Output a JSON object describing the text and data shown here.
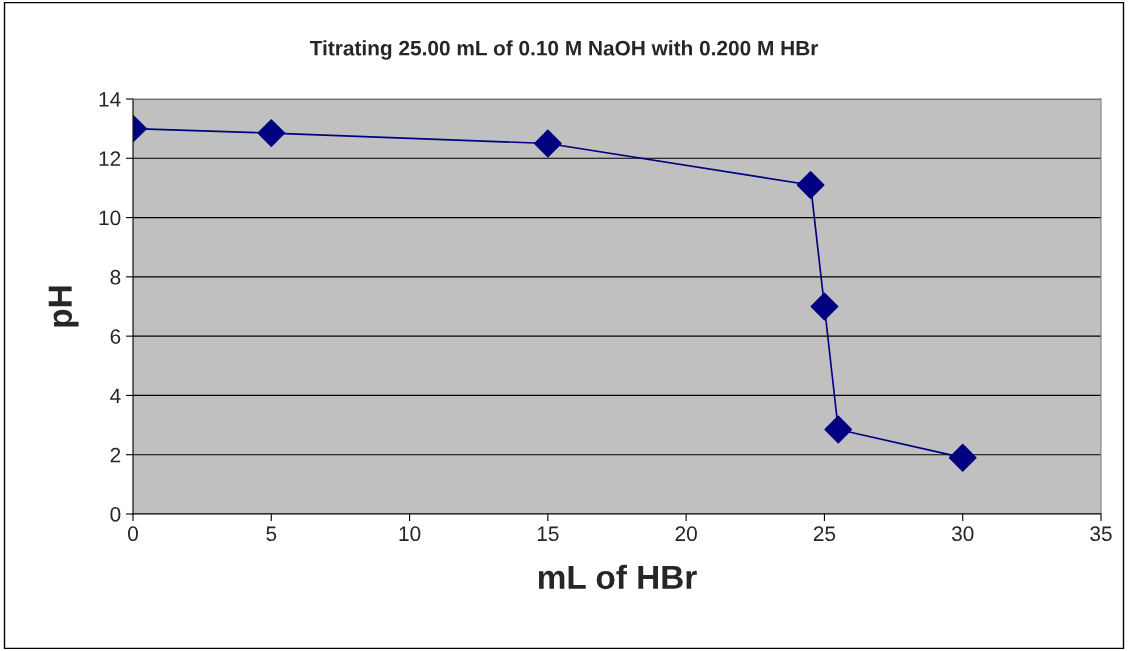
{
  "chart_data": {
    "type": "line",
    "title": "Titrating 25.00 mL of 0.10 M NaOH with 0.200 M HBr",
    "xlabel": "mL of HBr",
    "ylabel": "pH",
    "x": [
      0,
      5,
      15,
      24.5,
      25,
      25.5,
      30
    ],
    "series": [
      {
        "color": "#000080",
        "values": [
          13,
          12.85,
          12.5,
          11.1,
          7,
          2.85,
          1.9
        ]
      }
    ],
    "xlim": [
      0,
      35
    ],
    "xticks": [
      0,
      5,
      10,
      15,
      20,
      25,
      30,
      35
    ],
    "ylim": [
      0,
      14
    ],
    "yticks": [
      0,
      2,
      4,
      6,
      8,
      10,
      12,
      14
    ],
    "grid": "y",
    "legend": false,
    "marker": "diamond",
    "line_style": "solid"
  }
}
